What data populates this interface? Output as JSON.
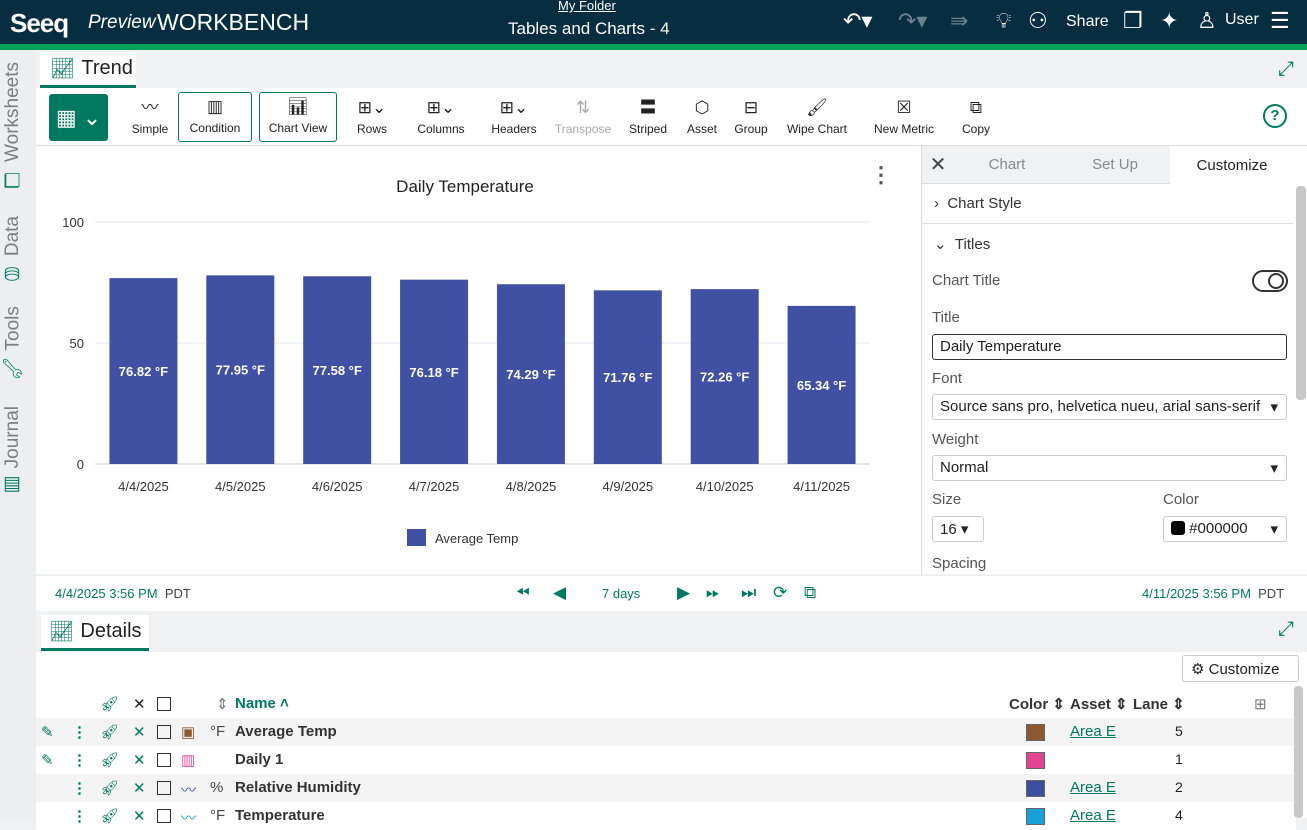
{
  "header": {
    "logo": "Seeq",
    "preview": "Preview",
    "app": "WORKBENCH",
    "folder": "My Folder",
    "title": "Tables and Charts - 4",
    "share": "Share",
    "user": "User"
  },
  "sidebar": {
    "tabs": [
      "Worksheets",
      "Data",
      "Tools",
      "Journal"
    ]
  },
  "trend_tab": "Trend",
  "toolbar": {
    "items": [
      "Simple",
      "Condition",
      "Chart View",
      "Rows",
      "Columns",
      "Headers",
      "Transpose",
      "Striped",
      "Asset",
      "Group",
      "Wipe Chart",
      "New Metric",
      "Copy"
    ],
    "help": "?"
  },
  "chart_data": {
    "type": "bar",
    "title": "Daily Temperature",
    "categories": [
      "4/4/2025",
      "4/5/2025",
      "4/6/2025",
      "4/7/2025",
      "4/8/2025",
      "4/9/2025",
      "4/10/2025",
      "4/11/2025"
    ],
    "series": [
      {
        "name": "Average Temp",
        "values": [
          76.82,
          77.95,
          77.58,
          76.18,
          74.29,
          71.76,
          72.26,
          65.34
        ],
        "labels": [
          "76.82 °F",
          "77.95 °F",
          "77.58 °F",
          "76.18 °F",
          "74.29 °F",
          "71.76 °F",
          "72.26 °F",
          "65.34 °F"
        ],
        "color": "#4051a3"
      }
    ],
    "yticks": [
      "0",
      "50",
      "100"
    ],
    "ylim": [
      0,
      100
    ],
    "grid": true,
    "legend": "bottom"
  },
  "panel": {
    "tabs": [
      "Chart",
      "Set Up",
      "Customize"
    ],
    "chart_style": "Chart Style",
    "titles": "Titles",
    "chart_title_label": "Chart Title",
    "title_label": "Title",
    "title_value": "Daily Temperature",
    "font_label": "Font",
    "font_value": "Source sans pro, helvetica nueu, arial sans-serif",
    "weight_label": "Weight",
    "weight_value": "Normal",
    "size_label": "Size",
    "size_value": "16",
    "color_label": "Color",
    "color_value": "#000000",
    "spacing_label": "Spacing"
  },
  "timebar": {
    "start": "4/4/2025 3:56 PM",
    "start_tz": "PDT",
    "range": "7 days",
    "end": "4/11/2025 3:56 PM",
    "end_tz": "PDT"
  },
  "details": {
    "tab": "Details",
    "customize": "Customize",
    "headers": {
      "name": "Name",
      "color": "Color",
      "asset": "Asset",
      "lane": "Lane"
    },
    "rows": [
      {
        "unit": "°F",
        "name": "Average Temp",
        "color": "#8b5a34",
        "asset": "Area E",
        "lane": "5"
      },
      {
        "unit": "",
        "name": "Daily 1",
        "color": "#e0458f",
        "asset": "",
        "lane": "1"
      },
      {
        "unit": "%",
        "name": "Relative Humidity",
        "color": "#3a4f9e",
        "asset": "Area E",
        "lane": "2"
      },
      {
        "unit": "°F",
        "name": "Temperature",
        "color": "#1aa0d8",
        "asset": "Area E",
        "lane": "4"
      }
    ]
  }
}
